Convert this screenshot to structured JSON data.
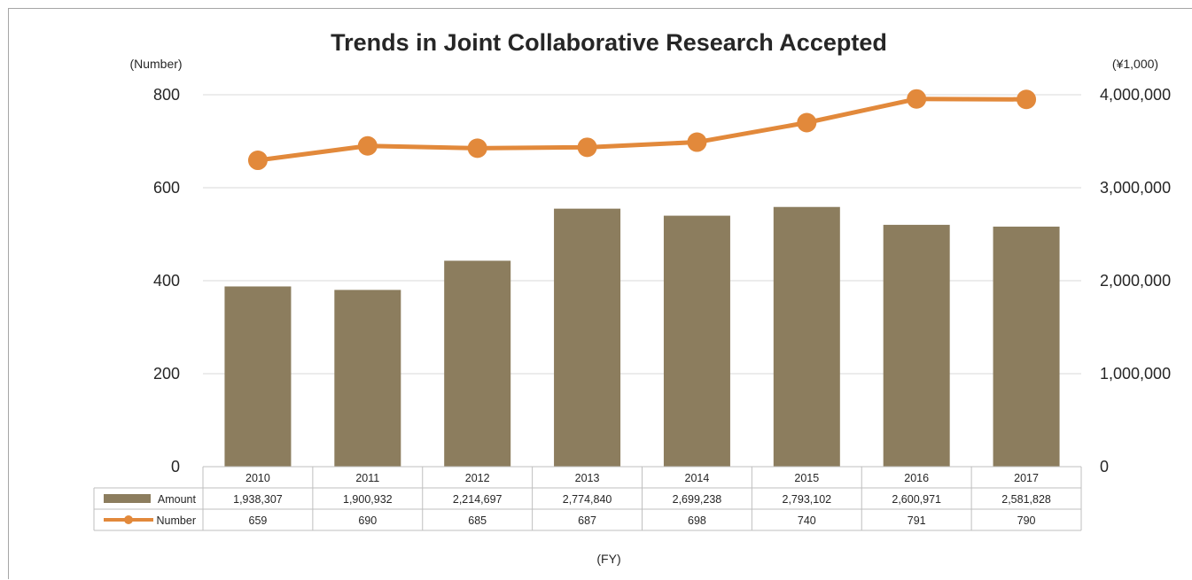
{
  "chart_data": {
    "type": "bar+line",
    "title": "Trends in Joint Collaborative Research Accepted",
    "xlabel": "(FY)",
    "y_left_label": "(Number)",
    "y_right_label": "(¥1,000)",
    "categories": [
      "2010",
      "2011",
      "2012",
      "2013",
      "2014",
      "2015",
      "2016",
      "2017"
    ],
    "y_left_ticks": [
      "0",
      "200",
      "400",
      "600",
      "800"
    ],
    "y_right_ticks": [
      "0",
      "1,000,000",
      "2,000,000",
      "3,000,000",
      "4,000,000"
    ],
    "ylim_left": [
      0,
      800
    ],
    "ylim_right": [
      0,
      4000000
    ],
    "grid": true,
    "legend": "data-table",
    "series": [
      {
        "name": "Amount",
        "type": "bar",
        "axis": "right",
        "color": "#8c7d5e",
        "values": [
          1938307,
          1900932,
          2214697,
          2774840,
          2699238,
          2793102,
          2600971,
          2581828
        ],
        "labels": [
          "1,938,307",
          "1,900,932",
          "2,214,697",
          "2,774,840",
          "2,699,238",
          "2,793,102",
          "2,600,971",
          "2,581,828"
        ]
      },
      {
        "name": "Number",
        "type": "line",
        "axis": "left",
        "color": "#e2893b",
        "values": [
          659,
          690,
          685,
          687,
          698,
          740,
          791,
          790
        ],
        "labels": [
          "659",
          "690",
          "685",
          "687",
          "698",
          "740",
          "791",
          "790"
        ]
      }
    ]
  }
}
